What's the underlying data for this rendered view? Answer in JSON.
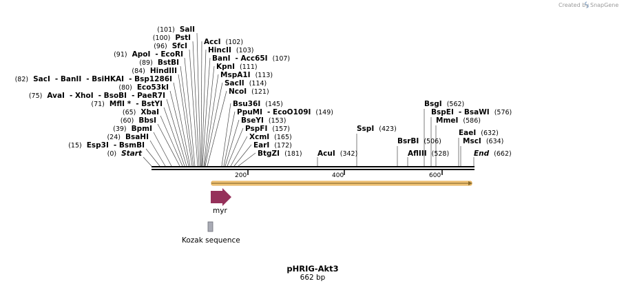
{
  "credit": {
    "prefix": "Created by",
    "brand": "SnapGene"
  },
  "title": "pHRIG-Akt3",
  "length_label": "662 bp",
  "ruler_ticks": [
    "200",
    "400",
    "600"
  ],
  "left_sites": [
    {
      "id": "salI",
      "segs": [
        {
          "t": "(101)",
          "k": "pos"
        },
        {
          "t": "SalI",
          "k": "enz"
        }
      ]
    },
    {
      "id": "pstI",
      "segs": [
        {
          "t": "(100)",
          "k": "pos"
        },
        {
          "t": "PstI",
          "k": "enz"
        }
      ]
    },
    {
      "id": "sfcI",
      "segs": [
        {
          "t": "(96)",
          "k": "pos"
        },
        {
          "t": "SfcI",
          "k": "enz"
        }
      ]
    },
    {
      "id": "apoI",
      "segs": [
        {
          "t": "(91)",
          "k": "pos"
        },
        {
          "t": "ApoI",
          "k": "enz"
        },
        {
          "t": "- EcoRI",
          "k": "enz"
        }
      ]
    },
    {
      "id": "bstBI",
      "segs": [
        {
          "t": "(89)",
          "k": "pos"
        },
        {
          "t": "BstBI",
          "k": "enz"
        }
      ]
    },
    {
      "id": "hindIII",
      "segs": [
        {
          "t": "(84)",
          "k": "pos"
        },
        {
          "t": "HindIII",
          "k": "enz"
        }
      ]
    },
    {
      "id": "sacI",
      "segs": [
        {
          "t": "(82)",
          "k": "pos"
        },
        {
          "t": "SacI",
          "k": "enz"
        },
        {
          "t": "- BanII",
          "k": "enz"
        },
        {
          "t": "- BsiHKAI",
          "k": "enz"
        },
        {
          "t": "- Bsp1286I",
          "k": "enz"
        }
      ]
    },
    {
      "id": "eco53kI",
      "segs": [
        {
          "t": "(80)",
          "k": "pos"
        },
        {
          "t": "Eco53kI",
          "k": "enz"
        }
      ]
    },
    {
      "id": "avaI",
      "segs": [
        {
          "t": "(75)",
          "k": "pos"
        },
        {
          "t": "AvaI",
          "k": "enz"
        },
        {
          "t": "- XhoI",
          "k": "enz"
        },
        {
          "t": "- BsoBI",
          "k": "enz"
        },
        {
          "t": "- PaeR7I",
          "k": "enz"
        }
      ]
    },
    {
      "id": "mflI",
      "segs": [
        {
          "t": "(71)",
          "k": "pos"
        },
        {
          "t": "MflI *",
          "k": "enz"
        },
        {
          "t": "- BstYI",
          "k": "enz"
        }
      ]
    },
    {
      "id": "xbaI",
      "segs": [
        {
          "t": "(65)",
          "k": "pos"
        },
        {
          "t": "XbaI",
          "k": "enz"
        }
      ]
    },
    {
      "id": "bbsI",
      "segs": [
        {
          "t": "(60)",
          "k": "pos"
        },
        {
          "t": "BbsI",
          "k": "enz"
        }
      ]
    },
    {
      "id": "bpmI",
      "segs": [
        {
          "t": "(39)",
          "k": "pos"
        },
        {
          "t": "BpmI",
          "k": "enz"
        }
      ]
    },
    {
      "id": "bsaHI",
      "segs": [
        {
          "t": "(24)",
          "k": "pos"
        },
        {
          "t": "BsaHI",
          "k": "enz"
        }
      ]
    },
    {
      "id": "esp3I",
      "segs": [
        {
          "t": "(15)",
          "k": "pos"
        },
        {
          "t": "Esp3I",
          "k": "enz"
        },
        {
          "t": "- BsmBI",
          "k": "enz"
        }
      ]
    },
    {
      "id": "start",
      "segs": [
        {
          "t": "(0)",
          "k": "pos"
        },
        {
          "t": "Start",
          "k": "it"
        }
      ]
    }
  ],
  "mid_sites": [
    {
      "id": "accI",
      "segs": [
        {
          "t": "AccI",
          "k": "enz"
        },
        {
          "t": "(102)",
          "k": "pos"
        }
      ]
    },
    {
      "id": "hincII",
      "segs": [
        {
          "t": "HincII",
          "k": "enz"
        },
        {
          "t": "(103)",
          "k": "pos"
        }
      ]
    },
    {
      "id": "banI",
      "segs": [
        {
          "t": "BanI",
          "k": "enz"
        },
        {
          "t": "- Acc65I",
          "k": "enz"
        },
        {
          "t": "(107)",
          "k": "pos"
        }
      ]
    },
    {
      "id": "kpnI",
      "segs": [
        {
          "t": "KpnI",
          "k": "enz"
        },
        {
          "t": "(111)",
          "k": "pos"
        }
      ]
    },
    {
      "id": "mspA1I",
      "segs": [
        {
          "t": "MspA1I",
          "k": "enz"
        },
        {
          "t": "(113)",
          "k": "pos"
        }
      ]
    },
    {
      "id": "sacII",
      "segs": [
        {
          "t": "SacII",
          "k": "enz"
        },
        {
          "t": "(114)",
          "k": "pos"
        }
      ]
    },
    {
      "id": "ncoI",
      "segs": [
        {
          "t": "NcoI",
          "k": "enz"
        },
        {
          "t": "(121)",
          "k": "pos"
        }
      ]
    },
    {
      "id": "bsu36I",
      "segs": [
        {
          "t": "Bsu36I",
          "k": "enz"
        },
        {
          "t": "(145)",
          "k": "pos"
        }
      ]
    },
    {
      "id": "ppuMI",
      "segs": [
        {
          "t": "PpuMI",
          "k": "enz"
        },
        {
          "t": "- EcoO109I",
          "k": "enz"
        },
        {
          "t": "(149)",
          "k": "pos"
        }
      ]
    },
    {
      "id": "bseYI",
      "segs": [
        {
          "t": "BseYI",
          "k": "enz"
        },
        {
          "t": "(153)",
          "k": "pos"
        }
      ]
    },
    {
      "id": "pspFI",
      "segs": [
        {
          "t": "PspFI",
          "k": "enz"
        },
        {
          "t": "(157)",
          "k": "pos"
        }
      ]
    },
    {
      "id": "xcmI",
      "segs": [
        {
          "t": "XcmI",
          "k": "enz"
        },
        {
          "t": "(165)",
          "k": "pos"
        }
      ]
    },
    {
      "id": "earI",
      "segs": [
        {
          "t": "EarI",
          "k": "enz"
        },
        {
          "t": "(172)",
          "k": "pos"
        }
      ]
    },
    {
      "id": "btgZI",
      "segs": [
        {
          "t": "BtgZI",
          "k": "enz"
        },
        {
          "t": "(181)",
          "k": "pos"
        }
      ]
    }
  ],
  "right_sites": [
    {
      "id": "acuI",
      "segs": [
        {
          "t": "AcuI",
          "k": "enz"
        },
        {
          "t": "(342)",
          "k": "pos"
        }
      ]
    },
    {
      "id": "sspI",
      "segs": [
        {
          "t": "SspI",
          "k": "enz"
        },
        {
          "t": "(423)",
          "k": "pos"
        }
      ]
    },
    {
      "id": "bsrBI",
      "segs": [
        {
          "t": "BsrBI",
          "k": "enz"
        },
        {
          "t": "(506)",
          "k": "pos"
        }
      ]
    },
    {
      "id": "aflIII",
      "segs": [
        {
          "t": "AflIII",
          "k": "enz"
        },
        {
          "t": "(528)",
          "k": "pos"
        }
      ]
    },
    {
      "id": "bsgI",
      "segs": [
        {
          "t": "BsgI",
          "k": "enz"
        },
        {
          "t": "(562)",
          "k": "pos"
        }
      ]
    },
    {
      "id": "bspEI",
      "segs": [
        {
          "t": "BspEI",
          "k": "enz"
        },
        {
          "t": "- BsaWI",
          "k": "enz"
        },
        {
          "t": "(576)",
          "k": "pos"
        }
      ]
    },
    {
      "id": "mmeI",
      "segs": [
        {
          "t": "MmeI",
          "k": "enz"
        },
        {
          "t": "(586)",
          "k": "pos"
        }
      ]
    },
    {
      "id": "eaeI",
      "segs": [
        {
          "t": "EaeI",
          "k": "enz"
        },
        {
          "t": "(632)",
          "k": "pos"
        }
      ]
    },
    {
      "id": "mscI",
      "segs": [
        {
          "t": "MscI",
          "k": "enz"
        },
        {
          "t": "(634)",
          "k": "pos"
        }
      ]
    },
    {
      "id": "end",
      "segs": [
        {
          "t": "End",
          "k": "it"
        },
        {
          "t": "(662)",
          "k": "pos"
        }
      ]
    }
  ],
  "features": {
    "myr": "myr",
    "kozak": "Kozak sequence"
  },
  "colors": {
    "orf_fill": "#f3c77a",
    "orf_line": "#8a6a2a",
    "myr_arrow": "#95305a",
    "kozak_box": "#a9abb5"
  }
}
